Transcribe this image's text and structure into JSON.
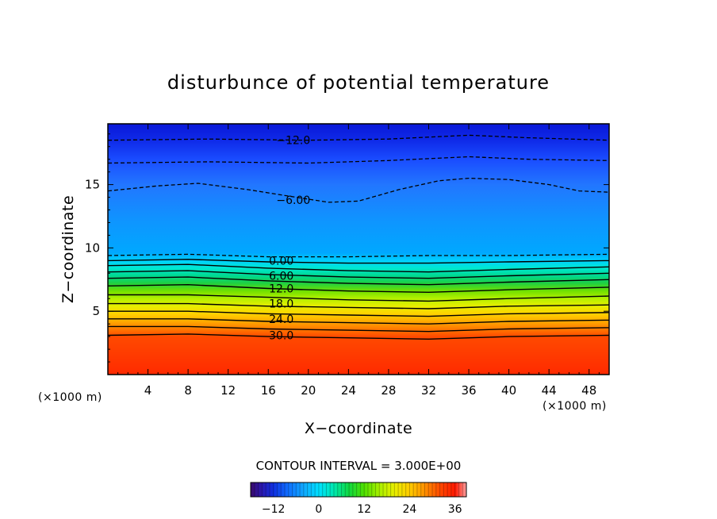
{
  "chart_data": {
    "type": "contour",
    "title": "disturbunce of potential temperature",
    "xlabel": "X−coordinate",
    "ylabel": "Z−coordinate",
    "x_unit": "(×1000 m)",
    "y_unit": "(×1000 m)",
    "xlim": [
      0,
      50
    ],
    "ylim": [
      0,
      19.8
    ],
    "xticks": [
      4,
      8,
      12,
      16,
      20,
      24,
      28,
      32,
      36,
      40,
      44,
      48
    ],
    "yticks": [
      5,
      10,
      15
    ],
    "contour_interval": "CONTOUR INTERVAL = 3.000E+00",
    "colorbar": {
      "range": [
        -18,
        39
      ],
      "ticks": [
        -12,
        0,
        12,
        24,
        36
      ],
      "tick_labels": [
        "−12",
        "0",
        "12",
        "24",
        "36"
      ]
    },
    "contour_labels": [
      {
        "text": "−12.0",
        "x": 18.5,
        "z": 18.5,
        "dashed": true
      },
      {
        "text": "−6.00",
        "x": 18.5,
        "z": 13.8,
        "dashed": true
      },
      {
        "text": "0.00",
        "x": 17.3,
        "z": 9.0,
        "dashed": false
      },
      {
        "text": "6.00",
        "x": 17.3,
        "z": 7.8,
        "dashed": false
      },
      {
        "text": "12.0",
        "x": 17.3,
        "z": 6.8,
        "dashed": false
      },
      {
        "text": "18.0",
        "x": 17.3,
        "z": 5.6,
        "dashed": false
      },
      {
        "text": "24.0",
        "x": 17.3,
        "z": 4.4,
        "dashed": false
      },
      {
        "text": "30.0",
        "x": 17.3,
        "z": 3.1,
        "dashed": false
      }
    ],
    "contour_lines": [
      {
        "value": -12,
        "dashed": true,
        "points": [
          [
            0,
            18.5
          ],
          [
            10,
            18.6
          ],
          [
            20,
            18.5
          ],
          [
            28,
            18.6
          ],
          [
            36,
            18.9
          ],
          [
            42,
            18.7
          ],
          [
            50,
            18.5
          ]
        ]
      },
      {
        "value": -9,
        "dashed": true,
        "points": [
          [
            0,
            16.7
          ],
          [
            10,
            16.8
          ],
          [
            20,
            16.7
          ],
          [
            28,
            16.9
          ],
          [
            36,
            17.2
          ],
          [
            42,
            17.0
          ],
          [
            50,
            16.9
          ]
        ]
      },
      {
        "value": -6,
        "dashed": true,
        "points": [
          [
            0,
            14.5
          ],
          [
            5,
            14.9
          ],
          [
            9,
            15.1
          ],
          [
            14,
            14.6
          ],
          [
            18,
            14.1
          ],
          [
            22,
            13.6
          ],
          [
            25,
            13.7
          ],
          [
            29,
            14.6
          ],
          [
            33,
            15.3
          ],
          [
            36,
            15.5
          ],
          [
            40,
            15.4
          ],
          [
            44,
            15.0
          ],
          [
            47,
            14.5
          ],
          [
            50,
            14.4
          ]
        ]
      },
      {
        "value": -3,
        "dashed": true,
        "points": [
          [
            0,
            9.4
          ],
          [
            8,
            9.5
          ],
          [
            16,
            9.3
          ],
          [
            24,
            9.3
          ],
          [
            32,
            9.4
          ],
          [
            40,
            9.4
          ],
          [
            50,
            9.5
          ]
        ]
      },
      {
        "value": 0,
        "dashed": false,
        "points": [
          [
            0,
            9.0
          ],
          [
            8,
            9.1
          ],
          [
            16,
            8.9
          ],
          [
            24,
            8.8
          ],
          [
            32,
            8.8
          ],
          [
            40,
            8.9
          ],
          [
            50,
            9.0
          ]
        ]
      },
      {
        "value": 3,
        "dashed": false,
        "points": [
          [
            0,
            8.6
          ],
          [
            8,
            8.7
          ],
          [
            16,
            8.4
          ],
          [
            24,
            8.2
          ],
          [
            32,
            8.1
          ],
          [
            40,
            8.3
          ],
          [
            50,
            8.5
          ]
        ]
      },
      {
        "value": 6,
        "dashed": false,
        "points": [
          [
            0,
            8.1
          ],
          [
            8,
            8.2
          ],
          [
            16,
            7.9
          ],
          [
            24,
            7.7
          ],
          [
            32,
            7.6
          ],
          [
            40,
            7.8
          ],
          [
            50,
            8.0
          ]
        ]
      },
      {
        "value": 9,
        "dashed": false,
        "points": [
          [
            0,
            7.6
          ],
          [
            8,
            7.7
          ],
          [
            16,
            7.4
          ],
          [
            24,
            7.2
          ],
          [
            32,
            7.1
          ],
          [
            40,
            7.3
          ],
          [
            50,
            7.5
          ]
        ]
      },
      {
        "value": 12,
        "dashed": false,
        "points": [
          [
            0,
            7.0
          ],
          [
            8,
            7.1
          ],
          [
            16,
            6.8
          ],
          [
            24,
            6.6
          ],
          [
            32,
            6.5
          ],
          [
            40,
            6.7
          ],
          [
            50,
            6.9
          ]
        ]
      },
      {
        "value": 15,
        "dashed": false,
        "points": [
          [
            0,
            6.3
          ],
          [
            8,
            6.3
          ],
          [
            16,
            6.1
          ],
          [
            24,
            5.9
          ],
          [
            32,
            5.8
          ],
          [
            40,
            6.0
          ],
          [
            50,
            6.2
          ]
        ]
      },
      {
        "value": 18,
        "dashed": false,
        "points": [
          [
            0,
            5.6
          ],
          [
            8,
            5.6
          ],
          [
            16,
            5.4
          ],
          [
            24,
            5.3
          ],
          [
            32,
            5.2
          ],
          [
            40,
            5.4
          ],
          [
            50,
            5.5
          ]
        ]
      },
      {
        "value": 21,
        "dashed": false,
        "points": [
          [
            0,
            5.0
          ],
          [
            8,
            5.0
          ],
          [
            16,
            4.8
          ],
          [
            24,
            4.7
          ],
          [
            32,
            4.6
          ],
          [
            40,
            4.8
          ],
          [
            50,
            4.9
          ]
        ]
      },
      {
        "value": 24,
        "dashed": false,
        "points": [
          [
            0,
            4.4
          ],
          [
            8,
            4.4
          ],
          [
            16,
            4.2
          ],
          [
            24,
            4.1
          ],
          [
            32,
            4.0
          ],
          [
            40,
            4.2
          ],
          [
            50,
            4.3
          ]
        ]
      },
      {
        "value": 27,
        "dashed": false,
        "points": [
          [
            0,
            3.8
          ],
          [
            8,
            3.8
          ],
          [
            16,
            3.6
          ],
          [
            24,
            3.5
          ],
          [
            32,
            3.4
          ],
          [
            40,
            3.6
          ],
          [
            50,
            3.7
          ]
        ]
      },
      {
        "value": 30,
        "dashed": false,
        "points": [
          [
            0,
            3.1
          ],
          [
            8,
            3.2
          ],
          [
            16,
            3.0
          ],
          [
            24,
            2.9
          ],
          [
            32,
            2.8
          ],
          [
            40,
            3.0
          ],
          [
            50,
            3.1
          ]
        ]
      }
    ],
    "color_bands": [
      {
        "z": 0,
        "color": "#ff2a00"
      },
      {
        "z": 3.0,
        "color": "#ff4a00"
      },
      {
        "z": 3.6,
        "color": "#ff7a00"
      },
      {
        "z": 4.2,
        "color": "#ffaa00"
      },
      {
        "z": 4.8,
        "color": "#ffd200"
      },
      {
        "z": 5.4,
        "color": "#e8ee00"
      },
      {
        "z": 6.0,
        "color": "#b4f000"
      },
      {
        "z": 6.6,
        "color": "#70e000"
      },
      {
        "z": 7.2,
        "color": "#20d040"
      },
      {
        "z": 7.8,
        "color": "#00d890"
      },
      {
        "z": 8.4,
        "color": "#00e8d0"
      },
      {
        "z": 9.0,
        "color": "#00d0ff"
      },
      {
        "z": 9.6,
        "color": "#00a8ff"
      },
      {
        "z": 12.0,
        "color": "#0e96ff"
      },
      {
        "z": 15.0,
        "color": "#2276ff"
      },
      {
        "z": 17.0,
        "color": "#1a4cff"
      },
      {
        "z": 18.5,
        "color": "#0f2ae8"
      },
      {
        "z": 19.8,
        "color": "#0a18d8"
      }
    ]
  }
}
